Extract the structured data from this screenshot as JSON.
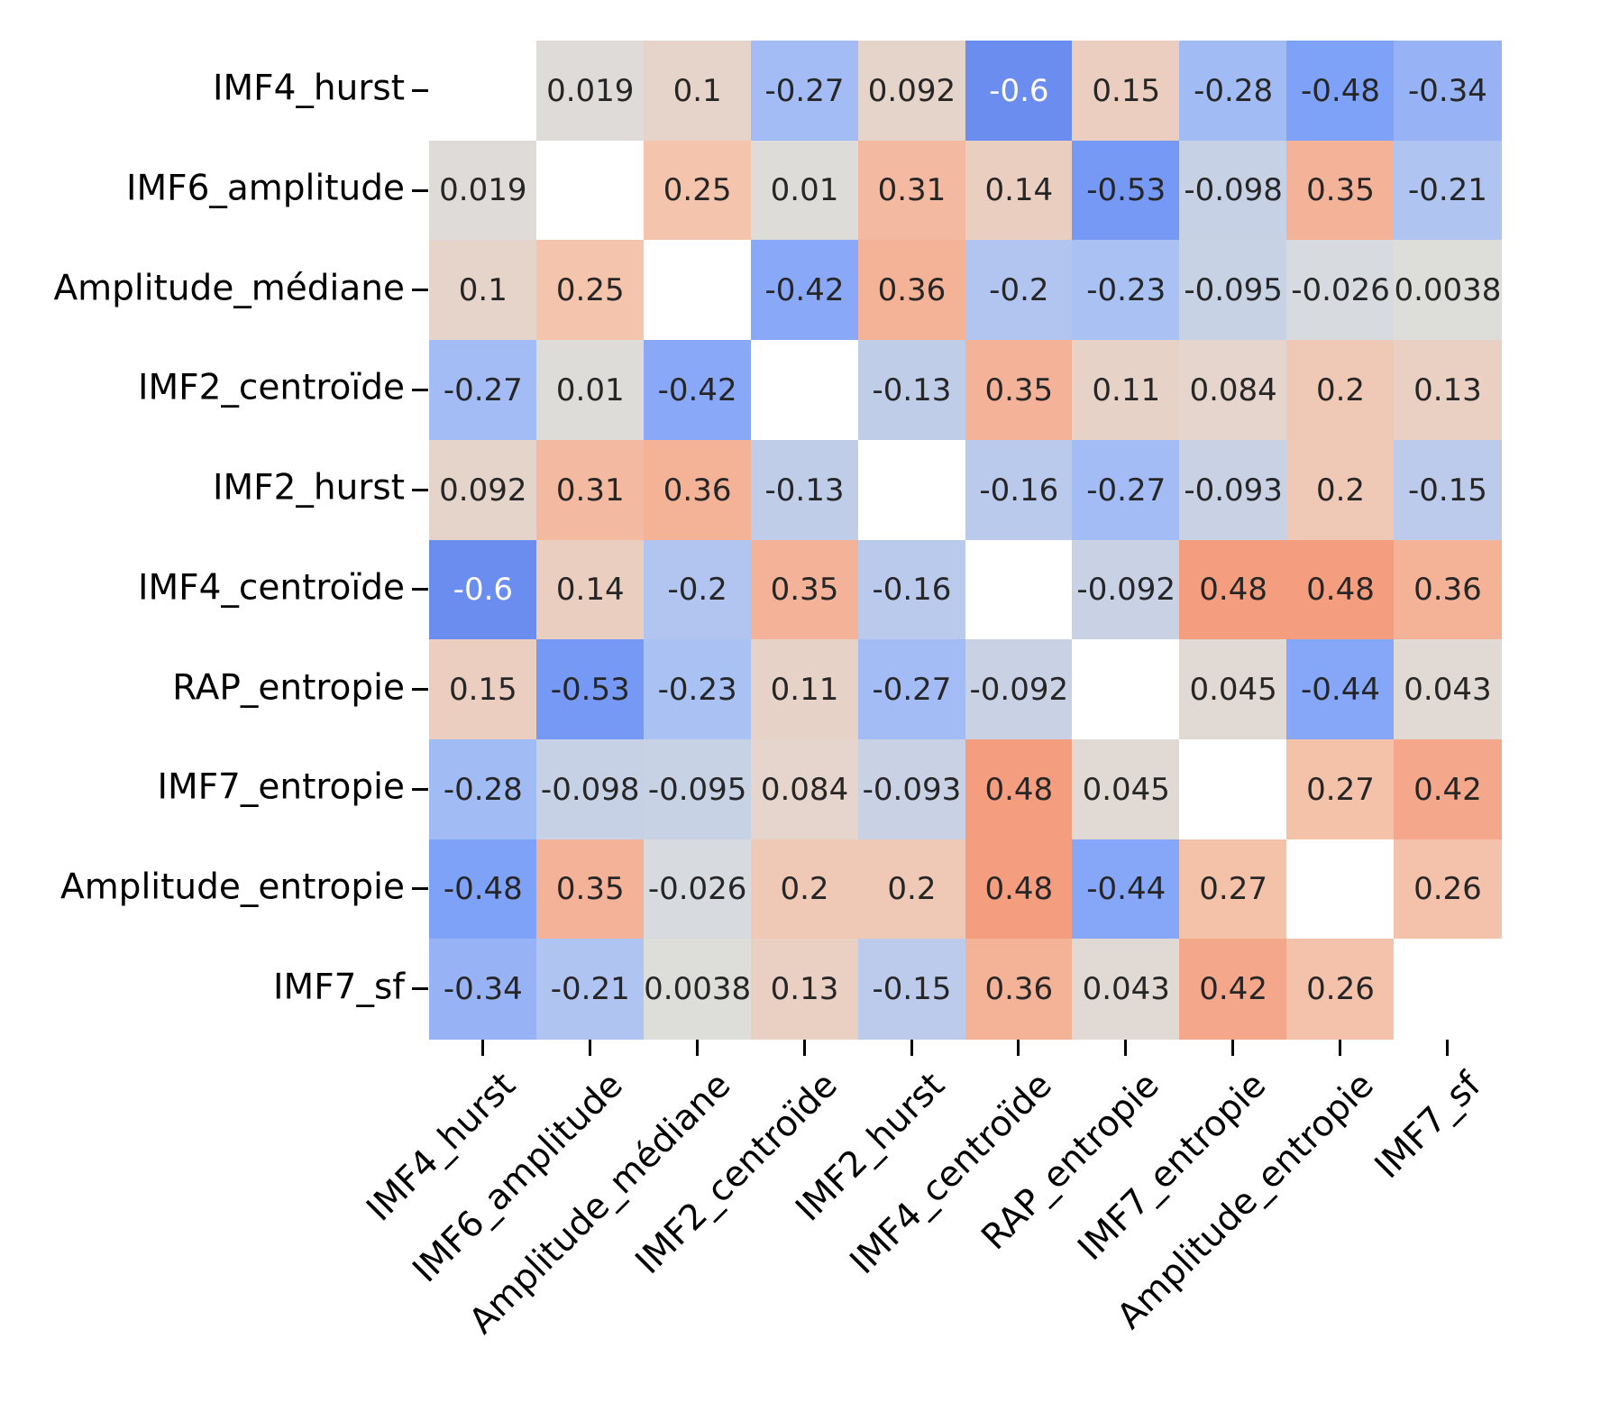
{
  "chart_data": {
    "type": "heatmap",
    "title": "",
    "xlabel": "",
    "ylabel": "",
    "legend": "none",
    "grid": "off",
    "diagonal_masked": true,
    "variables": [
      "IMF4_hurst",
      "IMF6_amplitude",
      "Amplitude_médiane",
      "IMF2_centroïde",
      "IMF2_hurst",
      "IMF4_centroïde",
      "RAP_entropie",
      "IMF7_entropie",
      "Amplitude_entropie",
      "IMF7_sf"
    ],
    "matrix": [
      [
        null,
        0.019,
        0.1,
        -0.27,
        0.092,
        -0.6,
        0.15,
        -0.28,
        -0.48,
        -0.34
      ],
      [
        0.019,
        null,
        0.25,
        0.01,
        0.31,
        0.14,
        -0.53,
        -0.098,
        0.35,
        -0.21
      ],
      [
        0.1,
        0.25,
        null,
        -0.42,
        0.36,
        -0.2,
        -0.23,
        -0.095,
        -0.026,
        0.0038
      ],
      [
        -0.27,
        0.01,
        -0.42,
        null,
        -0.13,
        0.35,
        0.11,
        0.084,
        0.2,
        0.13
      ],
      [
        0.092,
        0.31,
        0.36,
        -0.13,
        null,
        -0.16,
        -0.27,
        -0.093,
        0.2,
        -0.15
      ],
      [
        -0.6,
        0.14,
        -0.2,
        0.35,
        -0.16,
        null,
        -0.092,
        0.48,
        0.48,
        0.36
      ],
      [
        0.15,
        -0.53,
        -0.23,
        0.11,
        -0.27,
        -0.092,
        null,
        0.045,
        -0.44,
        0.043
      ],
      [
        -0.28,
        -0.098,
        -0.095,
        0.084,
        -0.093,
        0.48,
        0.045,
        null,
        0.27,
        0.42
      ],
      [
        -0.48,
        0.35,
        -0.026,
        0.2,
        0.2,
        0.48,
        -0.44,
        0.27,
        null,
        0.26
      ],
      [
        -0.34,
        -0.21,
        0.0038,
        0.13,
        -0.15,
        0.36,
        0.043,
        0.42,
        0.26,
        null
      ]
    ],
    "annotation_format": "2-significant-digits",
    "colormap": {
      "name": "coolwarm",
      "vmin": -1,
      "vmax": 1,
      "anchors": [
        [
          0.0,
          59,
          76,
          192
        ],
        [
          0.125,
          81,
          113,
          226
        ],
        [
          0.25,
          124,
          159,
          249
        ],
        [
          0.375,
          166,
          191,
          245
        ],
        [
          0.5,
          221,
          221,
          219
        ],
        [
          0.625,
          244,
          196,
          173
        ],
        [
          0.75,
          244,
          154,
          123
        ],
        [
          0.875,
          222,
          96,
          77
        ],
        [
          1.0,
          180,
          4,
          38
        ]
      ]
    },
    "colors": {
      "background": "#ffffff",
      "masked_cell": "#ffffff",
      "annotation_text_dark": "#262626",
      "annotation_text_light": "#ffffff",
      "axis_text": "#000000",
      "tick_mark": "#000000"
    }
  }
}
